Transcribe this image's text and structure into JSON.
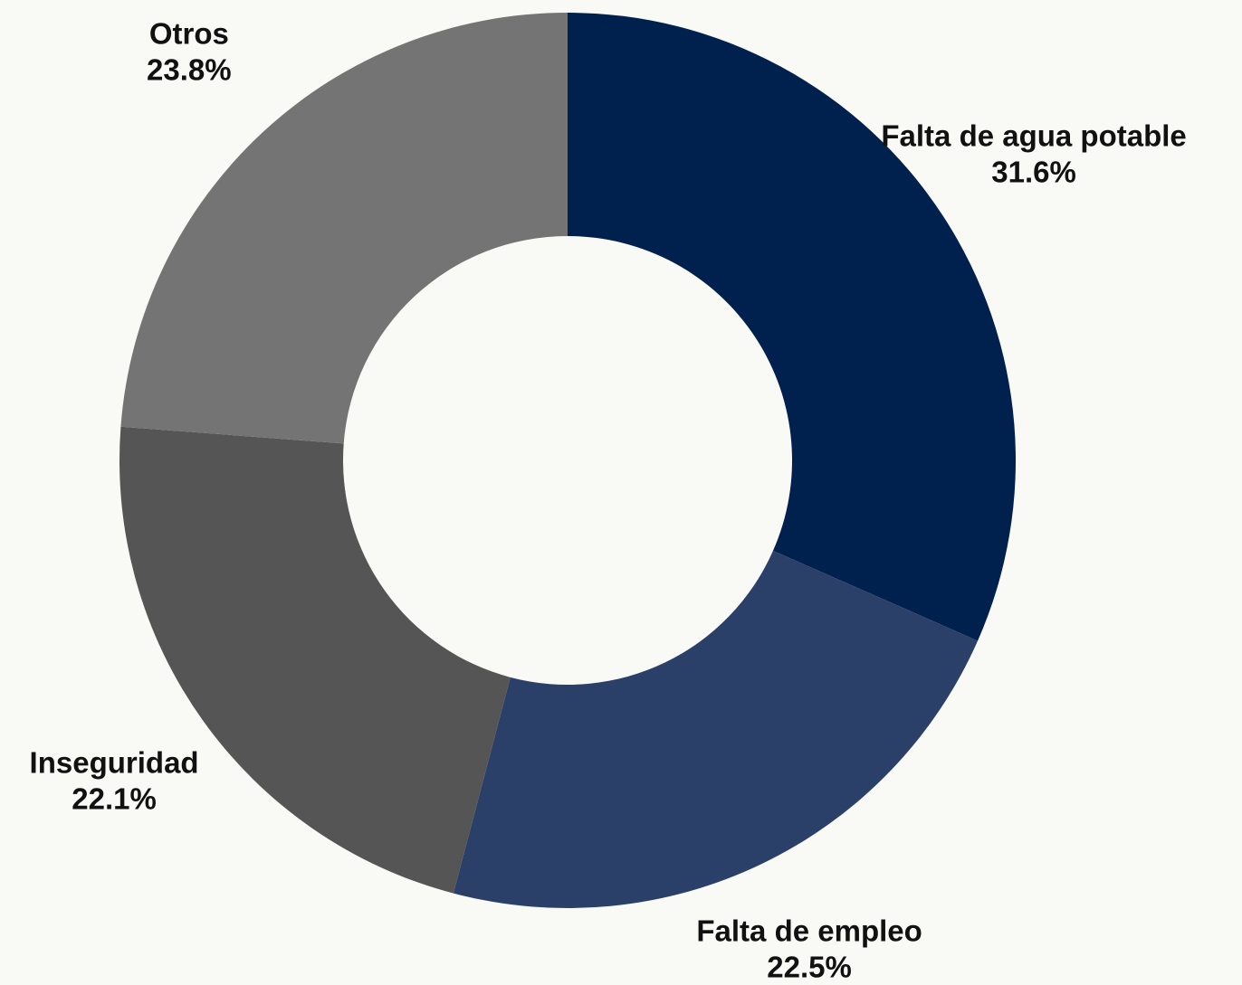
{
  "chart_data": {
    "type": "donut",
    "categories": [
      "Falta de agua potable",
      "Falta de empleo",
      "Inseguridad",
      "Otros"
    ],
    "values": [
      31.6,
      22.5,
      22.1,
      23.8
    ],
    "value_labels": [
      "31.6%",
      "22.5%",
      "22.1%",
      "23.8%"
    ],
    "colors": [
      "#00204e",
      "#2b4068",
      "#555555",
      "#747474"
    ]
  }
}
